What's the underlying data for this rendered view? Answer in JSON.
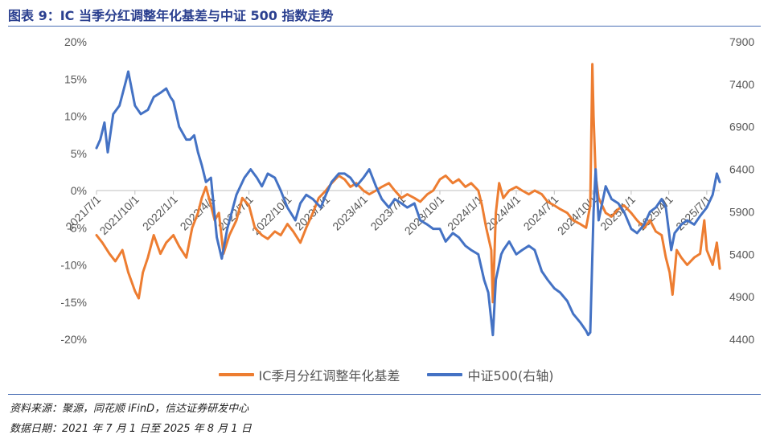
{
  "header": {
    "title": "图表 9：IC 当季分红调整年化基差与中证 500 指数走势"
  },
  "legend": {
    "series1": "IC季月分红调整年化基差",
    "series2": "中证500(右轴)"
  },
  "footer": {
    "source": "资料来源：聚源，同花顺 iFinD，信达证券研发中心",
    "data_date": "数据日期：2021 年 7 月 1 日至 2025 年 8 月 1 日"
  },
  "colors": {
    "basis": "#ED7D31",
    "index": "#4472C4",
    "axis": "#BFBFBF"
  },
  "chart_data": {
    "type": "line",
    "title": "",
    "x_start": "2021-07-01",
    "x_end": "2025-08-01",
    "x_ticks": [
      "2021/7/1",
      "2021/10/1",
      "2022/1/1",
      "2022/4/1",
      "2022/7/1",
      "2022/10/1",
      "2023/1/1",
      "2023/4/1",
      "2023/7/1",
      "2023/10/1",
      "2024/1/1",
      "2024/4/1",
      "2024/7/1",
      "2024/10/1",
      "2025/1/1",
      "2025/4/1",
      "2025/7/1"
    ],
    "y_left": {
      "min": -0.2,
      "max": 0.2,
      "ticks": [
        "20%",
        "15%",
        "10%",
        "5%",
        "0%",
        "-5%",
        "-10%",
        "-15%",
        "-20%"
      ]
    },
    "y_right": {
      "min": 4400,
      "max": 7900,
      "ticks": [
        "7900",
        "7400",
        "6900",
        "6400",
        "5900",
        "5400",
        "4900",
        "4400"
      ]
    },
    "series": [
      {
        "name": "IC季月分红调整年化基差",
        "axis": "left",
        "points": [
          [
            "2021-07-01",
            -0.06
          ],
          [
            "2021-07-15",
            -0.07
          ],
          [
            "2021-08-01",
            -0.085
          ],
          [
            "2021-08-15",
            -0.095
          ],
          [
            "2021-09-01",
            -0.08
          ],
          [
            "2021-09-15",
            -0.11
          ],
          [
            "2021-10-01",
            -0.135
          ],
          [
            "2021-10-10",
            -0.145
          ],
          [
            "2021-10-20",
            -0.11
          ],
          [
            "2021-11-01",
            -0.09
          ],
          [
            "2021-11-15",
            -0.06
          ],
          [
            "2021-12-01",
            -0.085
          ],
          [
            "2021-12-15",
            -0.07
          ],
          [
            "2022-01-01",
            -0.06
          ],
          [
            "2022-01-15",
            -0.075
          ],
          [
            "2022-02-01",
            -0.09
          ],
          [
            "2022-02-15",
            -0.05
          ],
          [
            "2022-03-01",
            -0.03
          ],
          [
            "2022-03-10",
            -0.01
          ],
          [
            "2022-03-20",
            0.005
          ],
          [
            "2022-04-01",
            -0.02
          ],
          [
            "2022-04-10",
            -0.04
          ],
          [
            "2022-04-20",
            -0.03
          ],
          [
            "2022-05-01",
            -0.085
          ],
          [
            "2022-05-15",
            -0.06
          ],
          [
            "2022-06-01",
            -0.04
          ],
          [
            "2022-06-15",
            -0.01
          ],
          [
            "2022-07-01",
            -0.02
          ],
          [
            "2022-07-15",
            -0.05
          ],
          [
            "2022-08-01",
            -0.06
          ],
          [
            "2022-08-15",
            -0.065
          ],
          [
            "2022-09-01",
            -0.055
          ],
          [
            "2022-09-15",
            -0.06
          ],
          [
            "2022-10-01",
            -0.045
          ],
          [
            "2022-10-15",
            -0.055
          ],
          [
            "2022-11-01",
            -0.07
          ],
          [
            "2022-11-15",
            -0.05
          ],
          [
            "2022-12-01",
            -0.03
          ],
          [
            "2022-12-15",
            -0.01
          ],
          [
            "2023-01-01",
            0.0
          ],
          [
            "2023-01-15",
            0.01
          ],
          [
            "2023-02-01",
            0.02
          ],
          [
            "2023-02-15",
            0.015
          ],
          [
            "2023-03-01",
            0.005
          ],
          [
            "2023-03-15",
            0.01
          ],
          [
            "2023-04-01",
            0.0
          ],
          [
            "2023-04-15",
            -0.005
          ],
          [
            "2023-05-01",
            0.0
          ],
          [
            "2023-05-15",
            0.005
          ],
          [
            "2023-06-01",
            0.01
          ],
          [
            "2023-06-15",
            0.0
          ],
          [
            "2023-07-01",
            -0.01
          ],
          [
            "2023-07-15",
            -0.005
          ],
          [
            "2023-08-01",
            -0.01
          ],
          [
            "2023-08-15",
            -0.015
          ],
          [
            "2023-09-01",
            -0.005
          ],
          [
            "2023-09-15",
            0.0
          ],
          [
            "2023-10-01",
            0.015
          ],
          [
            "2023-10-15",
            0.02
          ],
          [
            "2023-11-01",
            0.01
          ],
          [
            "2023-11-15",
            0.015
          ],
          [
            "2023-12-01",
            0.005
          ],
          [
            "2023-12-15",
            0.01
          ],
          [
            "2024-01-01",
            0.0
          ],
          [
            "2024-01-10",
            -0.02
          ],
          [
            "2024-01-20",
            -0.05
          ],
          [
            "2024-02-01",
            -0.08
          ],
          [
            "2024-02-05",
            -0.15
          ],
          [
            "2024-02-12",
            -0.03
          ],
          [
            "2024-02-20",
            0.01
          ],
          [
            "2024-03-01",
            -0.01
          ],
          [
            "2024-03-15",
            0.0
          ],
          [
            "2024-04-01",
            0.005
          ],
          [
            "2024-04-15",
            0.0
          ],
          [
            "2024-05-01",
            -0.005
          ],
          [
            "2024-05-15",
            0.0
          ],
          [
            "2024-06-01",
            -0.005
          ],
          [
            "2024-06-15",
            -0.015
          ],
          [
            "2024-07-01",
            -0.02
          ],
          [
            "2024-07-15",
            -0.025
          ],
          [
            "2024-08-01",
            -0.03
          ],
          [
            "2024-08-15",
            -0.04
          ],
          [
            "2024-09-01",
            -0.045
          ],
          [
            "2024-09-15",
            -0.05
          ],
          [
            "2024-09-25",
            -0.02
          ],
          [
            "2024-09-30",
            0.17
          ],
          [
            "2024-10-03",
            0.1
          ],
          [
            "2024-10-08",
            0.02
          ],
          [
            "2024-10-15",
            -0.01
          ],
          [
            "2024-11-01",
            -0.03
          ],
          [
            "2024-11-15",
            -0.035
          ],
          [
            "2024-12-01",
            -0.025
          ],
          [
            "2024-12-15",
            -0.02
          ],
          [
            "2025-01-01",
            -0.03
          ],
          [
            "2025-01-15",
            -0.04
          ],
          [
            "2025-02-01",
            -0.05
          ],
          [
            "2025-02-15",
            -0.04
          ],
          [
            "2025-03-01",
            -0.055
          ],
          [
            "2025-03-15",
            -0.06
          ],
          [
            "2025-03-25",
            -0.09
          ],
          [
            "2025-04-03",
            -0.11
          ],
          [
            "2025-04-10",
            -0.14
          ],
          [
            "2025-04-20",
            -0.08
          ],
          [
            "2025-05-01",
            -0.09
          ],
          [
            "2025-05-15",
            -0.1
          ],
          [
            "2025-06-01",
            -0.09
          ],
          [
            "2025-06-15",
            -0.085
          ],
          [
            "2025-06-25",
            -0.04
          ],
          [
            "2025-07-01",
            -0.08
          ],
          [
            "2025-07-15",
            -0.1
          ],
          [
            "2025-07-25",
            -0.07
          ],
          [
            "2025-08-01",
            -0.105
          ]
        ]
      },
      {
        "name": "中证500(右轴)",
        "axis": "right",
        "points": [
          [
            "2021-07-01",
            6650
          ],
          [
            "2021-07-10",
            6750
          ],
          [
            "2021-07-20",
            6950
          ],
          [
            "2021-07-28",
            6600
          ],
          [
            "2021-08-10",
            7050
          ],
          [
            "2021-08-25",
            7150
          ],
          [
            "2021-09-10",
            7450
          ],
          [
            "2021-09-15",
            7550
          ],
          [
            "2021-09-25",
            7300
          ],
          [
            "2021-10-01",
            7150
          ],
          [
            "2021-10-15",
            7050
          ],
          [
            "2021-11-01",
            7100
          ],
          [
            "2021-11-15",
            7250
          ],
          [
            "2021-12-01",
            7300
          ],
          [
            "2021-12-15",
            7350
          ],
          [
            "2021-12-25",
            7250
          ],
          [
            "2022-01-01",
            7200
          ],
          [
            "2022-01-15",
            6900
          ],
          [
            "2022-02-01",
            6750
          ],
          [
            "2022-02-10",
            6750
          ],
          [
            "2022-02-20",
            6800
          ],
          [
            "2022-03-01",
            6600
          ],
          [
            "2022-03-10",
            6450
          ],
          [
            "2022-03-20",
            6250
          ],
          [
            "2022-04-01",
            6300
          ],
          [
            "2022-04-15",
            5600
          ],
          [
            "2022-04-27",
            5350
          ],
          [
            "2022-05-10",
            5700
          ],
          [
            "2022-06-01",
            6100
          ],
          [
            "2022-06-20",
            6300
          ],
          [
            "2022-07-05",
            6400
          ],
          [
            "2022-07-20",
            6300
          ],
          [
            "2022-08-01",
            6200
          ],
          [
            "2022-08-15",
            6350
          ],
          [
            "2022-09-01",
            6300
          ],
          [
            "2022-09-15",
            6150
          ],
          [
            "2022-10-01",
            5950
          ],
          [
            "2022-10-20",
            5800
          ],
          [
            "2022-11-01",
            6000
          ],
          [
            "2022-11-15",
            6100
          ],
          [
            "2022-12-01",
            6050
          ],
          [
            "2022-12-20",
            5950
          ],
          [
            "2023-01-01",
            6100
          ],
          [
            "2023-01-15",
            6250
          ],
          [
            "2023-02-01",
            6350
          ],
          [
            "2023-02-15",
            6350
          ],
          [
            "2023-03-01",
            6300
          ],
          [
            "2023-03-15",
            6200
          ],
          [
            "2023-04-01",
            6300
          ],
          [
            "2023-04-15",
            6400
          ],
          [
            "2023-05-01",
            6200
          ],
          [
            "2023-05-15",
            6050
          ],
          [
            "2023-06-01",
            5950
          ],
          [
            "2023-06-15",
            6050
          ],
          [
            "2023-07-01",
            6000
          ],
          [
            "2023-07-15",
            5950
          ],
          [
            "2023-08-01",
            6000
          ],
          [
            "2023-08-15",
            5800
          ],
          [
            "2023-09-01",
            5750
          ],
          [
            "2023-09-15",
            5700
          ],
          [
            "2023-10-01",
            5700
          ],
          [
            "2023-10-15",
            5550
          ],
          [
            "2023-11-01",
            5650
          ],
          [
            "2023-11-15",
            5600
          ],
          [
            "2023-12-01",
            5500
          ],
          [
            "2023-12-15",
            5450
          ],
          [
            "2024-01-01",
            5400
          ],
          [
            "2024-01-15",
            5100
          ],
          [
            "2024-01-25",
            4950
          ],
          [
            "2024-02-05",
            4450
          ],
          [
            "2024-02-12",
            5100
          ],
          [
            "2024-02-25",
            5400
          ],
          [
            "2024-03-01",
            5450
          ],
          [
            "2024-03-15",
            5550
          ],
          [
            "2024-04-01",
            5400
          ],
          [
            "2024-04-15",
            5450
          ],
          [
            "2024-05-01",
            5500
          ],
          [
            "2024-05-15",
            5450
          ],
          [
            "2024-06-01",
            5200
          ],
          [
            "2024-06-15",
            5100
          ],
          [
            "2024-07-01",
            5000
          ],
          [
            "2024-07-15",
            4950
          ],
          [
            "2024-08-01",
            4850
          ],
          [
            "2024-08-15",
            4700
          ],
          [
            "2024-09-01",
            4600
          ],
          [
            "2024-09-15",
            4500
          ],
          [
            "2024-09-20",
            4450
          ],
          [
            "2024-09-25",
            4480
          ],
          [
            "2024-10-03",
            5900
          ],
          [
            "2024-10-08",
            6400
          ],
          [
            "2024-10-15",
            5800
          ],
          [
            "2024-11-01",
            6200
          ],
          [
            "2024-11-15",
            6050
          ],
          [
            "2024-12-01",
            6000
          ],
          [
            "2024-12-15",
            5900
          ],
          [
            "2025-01-01",
            5700
          ],
          [
            "2025-01-15",
            5650
          ],
          [
            "2025-02-01",
            5750
          ],
          [
            "2025-02-15",
            5900
          ],
          [
            "2025-03-01",
            5950
          ],
          [
            "2025-03-15",
            6050
          ],
          [
            "2025-03-25",
            5950
          ],
          [
            "2025-04-07",
            5450
          ],
          [
            "2025-04-15",
            5650
          ],
          [
            "2025-05-01",
            5750
          ],
          [
            "2025-05-15",
            5800
          ],
          [
            "2025-06-01",
            5750
          ],
          [
            "2025-06-15",
            5850
          ],
          [
            "2025-07-01",
            5950
          ],
          [
            "2025-07-15",
            6100
          ],
          [
            "2025-07-25",
            6350
          ],
          [
            "2025-08-01",
            6250
          ]
        ]
      }
    ]
  }
}
